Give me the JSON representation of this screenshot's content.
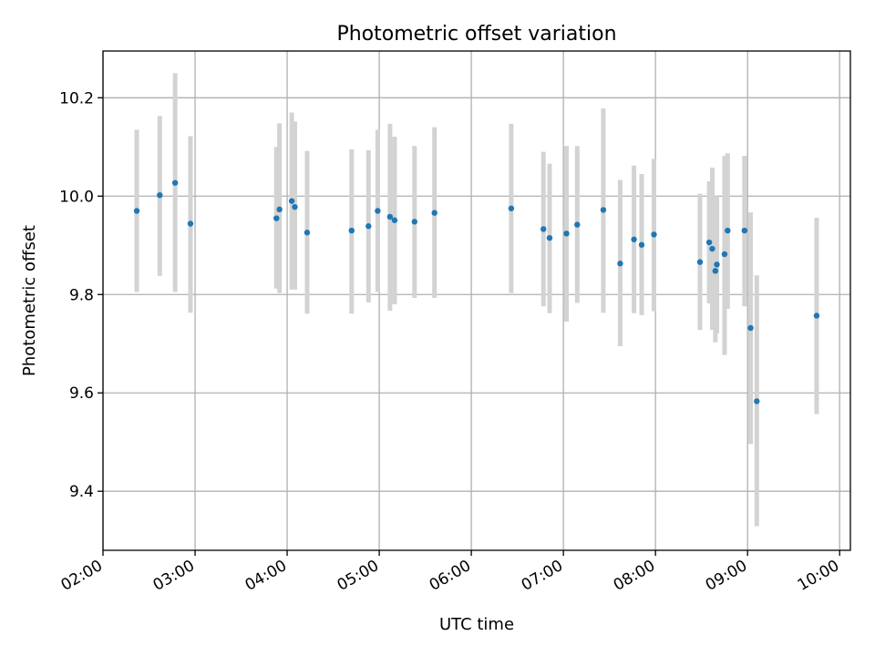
{
  "chart_data": {
    "type": "scatter",
    "title": "Photometric offset variation",
    "xlabel": "UTC time",
    "ylabel": "Photometric offset",
    "xlim": [
      "02:00",
      "10:07"
    ],
    "ylim": [
      9.28,
      10.295
    ],
    "x_ticks": [
      "02:00",
      "03:00",
      "04:00",
      "05:00",
      "06:00",
      "07:00",
      "08:00",
      "09:00",
      "10:00"
    ],
    "y_ticks": [
      "9.4",
      "9.6",
      "9.8",
      "10.0",
      "10.2"
    ],
    "grid": true,
    "colors": {
      "points": "#1f77b4",
      "error_bars": "#d3d3d3"
    },
    "points": [
      {
        "time": "02:22",
        "y": 9.97,
        "err_low": 9.805,
        "err_high": 10.135
      },
      {
        "time": "02:37",
        "y": 10.002,
        "err_low": 9.838,
        "err_high": 10.163
      },
      {
        "time": "02:47",
        "y": 10.027,
        "err_low": 9.805,
        "err_high": 10.25
      },
      {
        "time": "02:57",
        "y": 9.944,
        "err_low": 9.763,
        "err_high": 10.122
      },
      {
        "time": "03:53",
        "y": 9.955,
        "err_low": 9.812,
        "err_high": 10.1
      },
      {
        "time": "03:55",
        "y": 9.973,
        "err_low": 9.803,
        "err_high": 10.148
      },
      {
        "time": "04:03",
        "y": 9.99,
        "err_low": 9.81,
        "err_high": 10.17
      },
      {
        "time": "04:05",
        "y": 9.978,
        "err_low": 9.81,
        "err_high": 10.152
      },
      {
        "time": "04:13",
        "y": 9.926,
        "err_low": 9.761,
        "err_high": 10.092
      },
      {
        "time": "04:42",
        "y": 9.93,
        "err_low": 9.761,
        "err_high": 10.095
      },
      {
        "time": "04:53",
        "y": 9.939,
        "err_low": 9.784,
        "err_high": 10.093
      },
      {
        "time": "04:59",
        "y": 9.97,
        "err_low": 9.805,
        "err_high": 10.135
      },
      {
        "time": "05:07",
        "y": 9.958,
        "err_low": 9.767,
        "err_high": 10.147
      },
      {
        "time": "05:10",
        "y": 9.951,
        "err_low": 9.78,
        "err_high": 10.121
      },
      {
        "time": "05:23",
        "y": 9.948,
        "err_low": 9.793,
        "err_high": 10.102
      },
      {
        "time": "05:36",
        "y": 9.966,
        "err_low": 9.793,
        "err_high": 10.14
      },
      {
        "time": "06:26",
        "y": 9.975,
        "err_low": 9.803,
        "err_high": 10.147
      },
      {
        "time": "06:47",
        "y": 9.933,
        "err_low": 9.776,
        "err_high": 10.09
      },
      {
        "time": "06:51",
        "y": 9.915,
        "err_low": 9.762,
        "err_high": 10.066
      },
      {
        "time": "07:02",
        "y": 9.924,
        "err_low": 9.745,
        "err_high": 10.102
      },
      {
        "time": "07:09",
        "y": 9.942,
        "err_low": 9.783,
        "err_high": 10.102
      },
      {
        "time": "07:26",
        "y": 9.972,
        "err_low": 9.763,
        "err_high": 10.178
      },
      {
        "time": "07:37",
        "y": 9.863,
        "err_low": 9.695,
        "err_high": 10.033
      },
      {
        "time": "07:46",
        "y": 9.912,
        "err_low": 9.762,
        "err_high": 10.062
      },
      {
        "time": "07:51",
        "y": 9.901,
        "err_low": 9.758,
        "err_high": 10.045
      },
      {
        "time": "07:59",
        "y": 9.922,
        "err_low": 9.766,
        "err_high": 10.076
      },
      {
        "time": "08:29",
        "y": 9.866,
        "err_low": 9.728,
        "err_high": 10.005
      },
      {
        "time": "08:35",
        "y": 9.906,
        "err_low": 9.782,
        "err_high": 10.03
      },
      {
        "time": "08:37",
        "y": 9.893,
        "err_low": 9.728,
        "err_high": 10.058
      },
      {
        "time": "08:39",
        "y": 9.848,
        "err_low": 9.703,
        "err_high": 9.993
      },
      {
        "time": "08:40",
        "y": 9.861,
        "err_low": 9.721,
        "err_high": 10.0
      },
      {
        "time": "08:45",
        "y": 9.882,
        "err_low": 9.677,
        "err_high": 10.082
      },
      {
        "time": "08:47",
        "y": 9.93,
        "err_low": 9.771,
        "err_high": 10.087
      },
      {
        "time": "08:58",
        "y": 9.93,
        "err_low": 9.776,
        "err_high": 10.082
      },
      {
        "time": "09:02",
        "y": 9.732,
        "err_low": 9.496,
        "err_high": 9.967
      },
      {
        "time": "09:06",
        "y": 9.583,
        "err_low": 9.329,
        "err_high": 9.839
      },
      {
        "time": "09:45",
        "y": 9.757,
        "err_low": 9.557,
        "err_high": 9.956
      }
    ]
  }
}
